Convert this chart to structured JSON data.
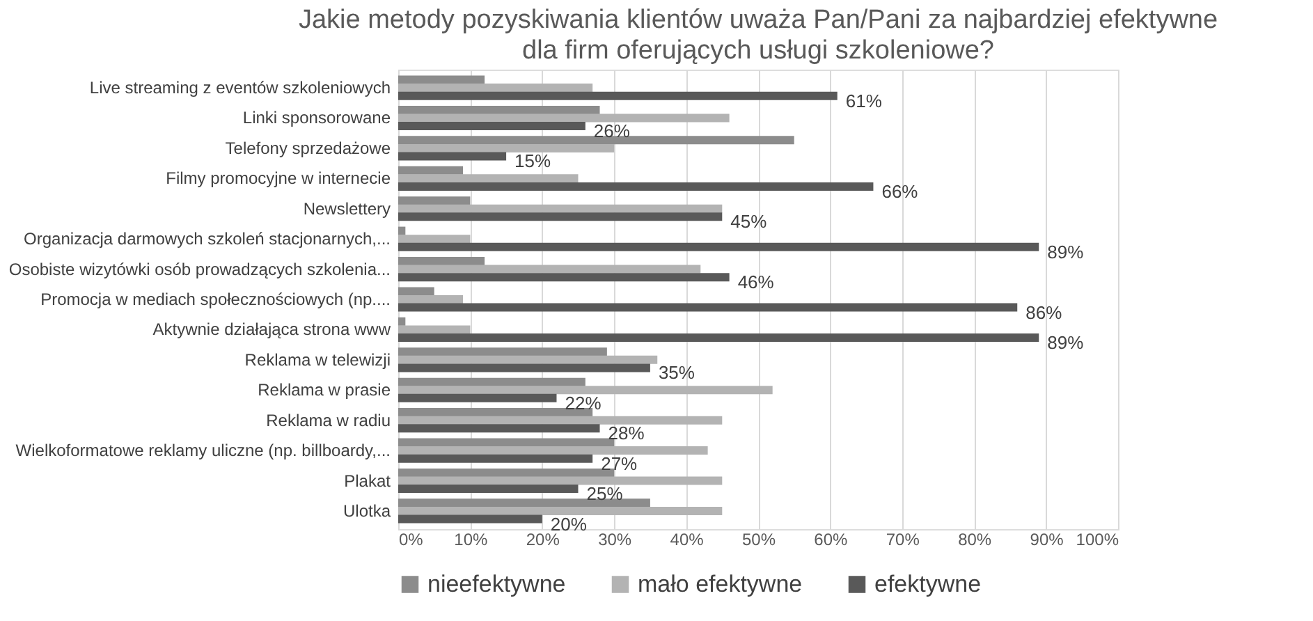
{
  "chart_data": {
    "type": "bar",
    "orientation": "horizontal",
    "title": "Jakie metody pozyskiwania klientów uważa Pan/Pani za najbardziej efektywne dla firm oferujących usługi szkoleniowe?",
    "categories": [
      "Live streaming z eventów szkoleniowych",
      "Linki sponsorowane",
      "Telefony sprzedażowe",
      "Filmy promocyjne w internecie",
      "Newslettery",
      "Organizacja darmowych szkoleń stacjonarnych,...",
      "Osobiste wizytówki osób prowadzących szkolenia...",
      "Promocja w mediach społecznościowych (np....",
      "Aktywnie działająca strona www",
      "Reklama w telewizji",
      "Reklama w prasie",
      "Reklama w radiu",
      "Wielkoformatowe reklamy uliczne (np. billboardy,...",
      "Plakat",
      "Ulotka"
    ],
    "series": [
      {
        "name": "nieefektywne",
        "color": "#8c8c8c",
        "values": [
          12,
          28,
          55,
          9,
          10,
          1,
          12,
          5,
          1,
          29,
          26,
          27,
          30,
          30,
          35
        ]
      },
      {
        "name": "mało efektywne",
        "color": "#b3b3b3",
        "values": [
          27,
          46,
          30,
          25,
          45,
          10,
          42,
          9,
          10,
          36,
          52,
          45,
          43,
          45,
          45
        ]
      },
      {
        "name": "efektywne",
        "color": "#595959",
        "values": [
          61,
          26,
          15,
          66,
          45,
          89,
          46,
          86,
          89,
          35,
          22,
          28,
          27,
          25,
          20
        ],
        "value_labels": [
          "61%",
          "26%",
          "15%",
          "66%",
          "45%",
          "89%",
          "46%",
          "86%",
          "89%",
          "35%",
          "22%",
          "28%",
          "27%",
          "25%",
          "20%"
        ]
      }
    ],
    "xlim": [
      0,
      100
    ],
    "xticks": [
      {
        "value": 0,
        "label": "0%"
      },
      {
        "value": 10,
        "label": "10%"
      },
      {
        "value": 20,
        "label": "20%"
      },
      {
        "value": 30,
        "label": "30%"
      },
      {
        "value": 40,
        "label": "40%"
      },
      {
        "value": 50,
        "label": "50%"
      },
      {
        "value": 60,
        "label": "60%"
      },
      {
        "value": 70,
        "label": "70%"
      },
      {
        "value": 80,
        "label": "80%"
      },
      {
        "value": 90,
        "label": "90%"
      },
      {
        "value": 100,
        "label": "100%"
      }
    ],
    "grid": "x",
    "legend": "bottom"
  }
}
